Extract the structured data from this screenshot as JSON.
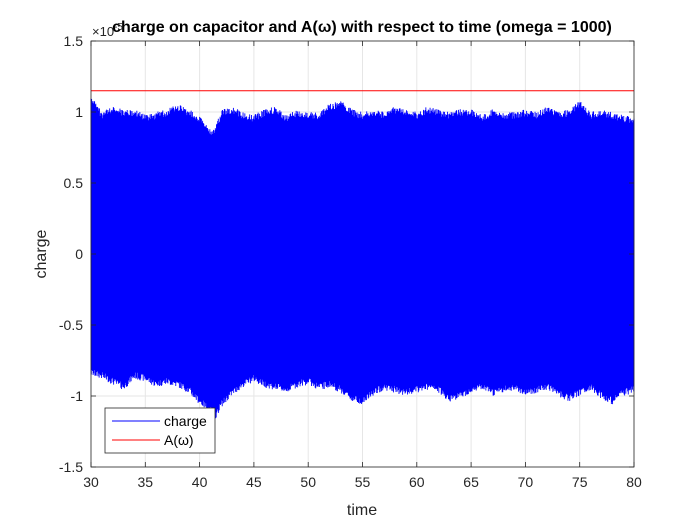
{
  "chart_data": {
    "type": "line",
    "title": "charge on capacitor and A(ω) with respect to time (omega = 1000)",
    "xlabel": "time",
    "ylabel": "charge",
    "xlim": [
      30,
      80
    ],
    "ylim": [
      -1.5,
      1.5
    ],
    "y_scale_exponent": "× 10^-5",
    "y_exponent_base": "×10",
    "y_exponent_power": "-5",
    "x_ticks": [
      "30",
      "35",
      "40",
      "45",
      "50",
      "55",
      "60",
      "65",
      "70",
      "75",
      "80"
    ],
    "y_ticks": [
      "1.5",
      "1",
      "0.5",
      "0",
      "-0.5",
      "-1",
      "-1.5"
    ],
    "grid": true,
    "legend_location": "bottom-left",
    "series": [
      {
        "name": "charge",
        "color": "#0000ff",
        "style": "dense oscillation",
        "x": [
          30,
          31,
          32,
          33,
          34,
          35,
          36,
          37,
          38,
          39,
          40,
          41,
          41.5,
          42,
          43,
          44,
          45,
          46,
          47,
          48,
          49,
          50,
          51,
          52,
          53,
          54,
          55,
          56,
          57,
          58,
          59,
          60,
          61,
          62,
          63,
          64,
          65,
          66,
          67,
          68,
          69,
          70,
          71,
          72,
          73,
          74,
          75,
          76,
          77,
          78,
          79,
          80
        ],
        "upper": [
          1.12,
          1.0,
          1.04,
          1.02,
          1.02,
          0.98,
          1.0,
          1.02,
          1.06,
          1.02,
          0.98,
          0.88,
          0.9,
          1.02,
          1.04,
          1.0,
          0.98,
          1.02,
          1.04,
          0.98,
          1.02,
          1.0,
          1.0,
          1.06,
          1.08,
          1.02,
          1.0,
          1.02,
          1.0,
          1.04,
          1.02,
          1.0,
          1.04,
          1.02,
          1.0,
          1.02,
          1.02,
          0.98,
          1.02,
          1.0,
          1.0,
          1.02,
          1.0,
          1.04,
          1.0,
          1.02,
          1.08,
          1.0,
          1.02,
          1.0,
          0.98,
          0.96
        ],
        "lower": [
          -0.86,
          -0.88,
          -0.92,
          -0.96,
          -0.88,
          -0.9,
          -0.94,
          -0.92,
          -0.94,
          -0.98,
          -1.06,
          -1.12,
          -1.16,
          -1.08,
          -1.0,
          -0.94,
          -0.9,
          -0.94,
          -0.96,
          -0.98,
          -0.94,
          -0.92,
          -0.96,
          -0.94,
          -0.98,
          -1.04,
          -1.06,
          -1.0,
          -0.96,
          -0.98,
          -1.0,
          -0.98,
          -0.96,
          -0.98,
          -1.04,
          -1.02,
          -0.98,
          -0.96,
          -1.0,
          -0.98,
          -0.96,
          -1.0,
          -0.98,
          -0.96,
          -1.0,
          -1.04,
          -1.0,
          -0.96,
          -1.02,
          -1.06,
          -1.0,
          -0.98
        ]
      },
      {
        "name": "A(ω)",
        "color": "#ff0000",
        "x": [
          30,
          80
        ],
        "y": [
          1.15,
          1.15
        ]
      }
    ]
  }
}
